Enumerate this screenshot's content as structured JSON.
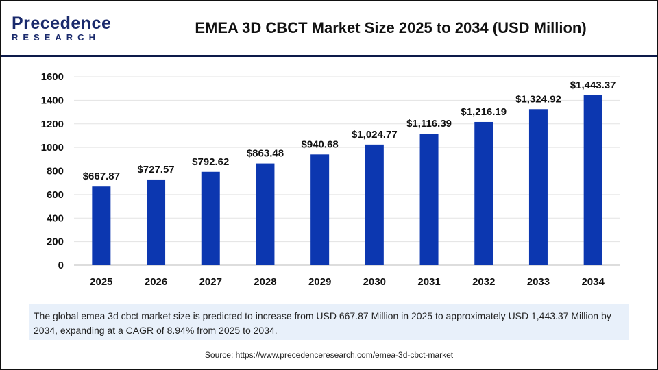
{
  "logo": {
    "line1": "Precedence",
    "line2": "RESEARCH"
  },
  "title": "EMEA 3D CBCT Market Size 2025 to 2034 (USD Million)",
  "chart_data": {
    "type": "bar",
    "title": "EMEA 3D CBCT Market Size 2025 to 2034 (USD Million)",
    "categories": [
      "2025",
      "2026",
      "2027",
      "2028",
      "2029",
      "2030",
      "2031",
      "2032",
      "2033",
      "2034"
    ],
    "values": [
      667.87,
      727.57,
      792.62,
      863.48,
      940.68,
      1024.77,
      1116.39,
      1216.19,
      1324.92,
      1443.37
    ],
    "data_labels": [
      "$667.87",
      "$727.57",
      "$792.62",
      "$863.48",
      "$940.68",
      "$1,024.77",
      "$1,116.39",
      "$1,216.19",
      "$1,324.92",
      "$1,443.37"
    ],
    "yticks": [
      0,
      200,
      400,
      600,
      800,
      1000,
      1200,
      1400,
      1600
    ],
    "ylim": [
      0,
      1600
    ],
    "grid": true,
    "bar_color": "#0c37b0"
  },
  "info": "The global emea 3d cbct market size is predicted to increase from USD 667.87 Million in 2025 to approximately USD 1,443.37 Million by 2034, expanding at a CAGR of 8.94% from 2025 to 2034.",
  "source": "Source: https://www.precedenceresearch.com/emea-3d-cbct-market"
}
